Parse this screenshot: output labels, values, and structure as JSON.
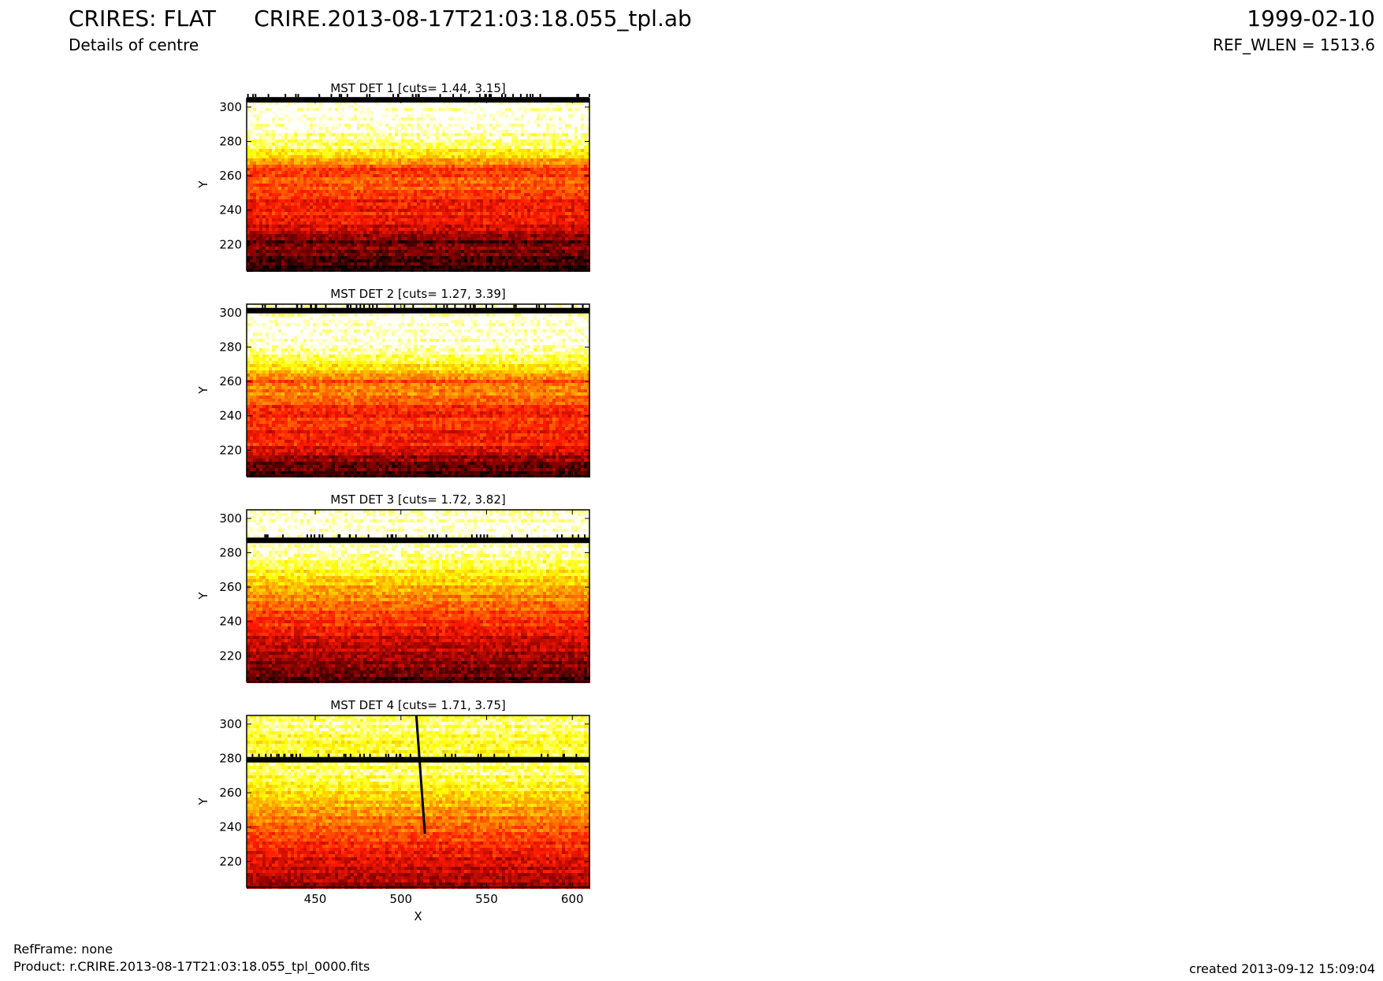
{
  "header": {
    "title": "CRIRES: FLAT",
    "subtitle": "Details of centre",
    "file": "CRIRE.2013-08-17T21:03:18.055_tpl.ab",
    "date": "1999-02-10",
    "ref_wlen": "REF_WLEN = 1513.6"
  },
  "footer": {
    "refframe": "RefFrame: none",
    "product": "Product: r.CRIRE.2013-08-17T21:03:18.055_tpl_0000.fits",
    "created": "created 2013-09-12 15:09:04"
  },
  "colors": {
    "colormap": "hot",
    "cmap_stops": [
      "#000000",
      "#8b0000",
      "#ff1a00",
      "#ff8c00",
      "#ffff00",
      "#ffffff"
    ]
  },
  "chart_data": [
    {
      "type": "heatmap",
      "title": "MST DET 1 [cuts= 1.44, 3.15]",
      "ylabel": "Y",
      "xlabel": "",
      "xlim": [
        410,
        610
      ],
      "ylim": [
        205,
        305
      ],
      "yticks": [
        220,
        240,
        260,
        280,
        300
      ],
      "xticks": [],
      "cuts": [
        1.44,
        3.15
      ],
      "dark_rows": [
        {
          "y": 304,
          "width": 2
        }
      ],
      "profile": [
        [
          205,
          0.06
        ],
        [
          212,
          0.12
        ],
        [
          218,
          0.2
        ],
        [
          221,
          0.13
        ],
        [
          228,
          0.3
        ],
        [
          236,
          0.4
        ],
        [
          244,
          0.38
        ],
        [
          252,
          0.5
        ],
        [
          258,
          0.52
        ],
        [
          263,
          0.42
        ],
        [
          270,
          0.7
        ],
        [
          278,
          0.88
        ],
        [
          290,
          1.0
        ],
        [
          305,
          1.0
        ]
      ]
    },
    {
      "type": "heatmap",
      "title": "MST DET 2 [cuts= 1.27, 3.39]",
      "ylabel": "Y",
      "xlabel": "",
      "xlim": [
        410,
        610
      ],
      "ylim": [
        205,
        305
      ],
      "yticks": [
        220,
        240,
        260,
        280,
        300
      ],
      "xticks": [],
      "cuts": [
        1.27,
        3.39
      ],
      "dark_rows": [
        {
          "y": 301,
          "width": 2
        }
      ],
      "profile": [
        [
          205,
          0.1
        ],
        [
          212,
          0.15
        ],
        [
          218,
          0.3
        ],
        [
          224,
          0.42
        ],
        [
          230,
          0.38
        ],
        [
          236,
          0.47
        ],
        [
          242,
          0.38
        ],
        [
          250,
          0.55
        ],
        [
          256,
          0.6
        ],
        [
          260,
          0.5
        ],
        [
          266,
          0.72
        ],
        [
          274,
          0.88
        ],
        [
          282,
          0.98
        ],
        [
          300,
          1.0
        ],
        [
          305,
          1.0
        ]
      ]
    },
    {
      "type": "heatmap",
      "title": "MST DET 3 [cuts= 1.72, 3.82]",
      "ylabel": "Y",
      "xlabel": "",
      "xlim": [
        410,
        610
      ],
      "ylim": [
        205,
        305
      ],
      "yticks": [
        220,
        240,
        260,
        280,
        300
      ],
      "xticks": [],
      "cuts": [
        1.72,
        3.82
      ],
      "dark_rows": [
        {
          "y": 287,
          "width": 2
        }
      ],
      "profile": [
        [
          205,
          0.1
        ],
        [
          212,
          0.18
        ],
        [
          218,
          0.22
        ],
        [
          224,
          0.28
        ],
        [
          230,
          0.32
        ],
        [
          236,
          0.4
        ],
        [
          242,
          0.45
        ],
        [
          248,
          0.52
        ],
        [
          256,
          0.62
        ],
        [
          264,
          0.72
        ],
        [
          272,
          0.85
        ],
        [
          280,
          0.95
        ],
        [
          285,
          0.98
        ],
        [
          290,
          1.0
        ],
        [
          305,
          0.97
        ]
      ]
    },
    {
      "type": "heatmap",
      "title": "MST DET 4 [cuts= 1.71, 3.75]",
      "ylabel": "Y",
      "xlabel": "X",
      "xlim": [
        410,
        610
      ],
      "ylim": [
        205,
        305
      ],
      "yticks": [
        220,
        240,
        260,
        280,
        300
      ],
      "xticks": [
        450,
        500,
        550,
        600
      ],
      "cuts": [
        1.71,
        3.75
      ],
      "dark_rows": [
        {
          "y": 279,
          "width": 2
        }
      ],
      "dark_line": {
        "x_top": 509,
        "y_top": 305,
        "x_bottom": 514,
        "y_bottom": 236
      },
      "profile": [
        [
          205,
          0.22
        ],
        [
          214,
          0.3
        ],
        [
          222,
          0.35
        ],
        [
          232,
          0.45
        ],
        [
          242,
          0.55
        ],
        [
          252,
          0.65
        ],
        [
          262,
          0.78
        ],
        [
          272,
          0.9
        ],
        [
          280,
          0.85
        ],
        [
          290,
          0.82
        ],
        [
          298,
          0.9
        ],
        [
          305,
          0.88
        ]
      ]
    }
  ]
}
